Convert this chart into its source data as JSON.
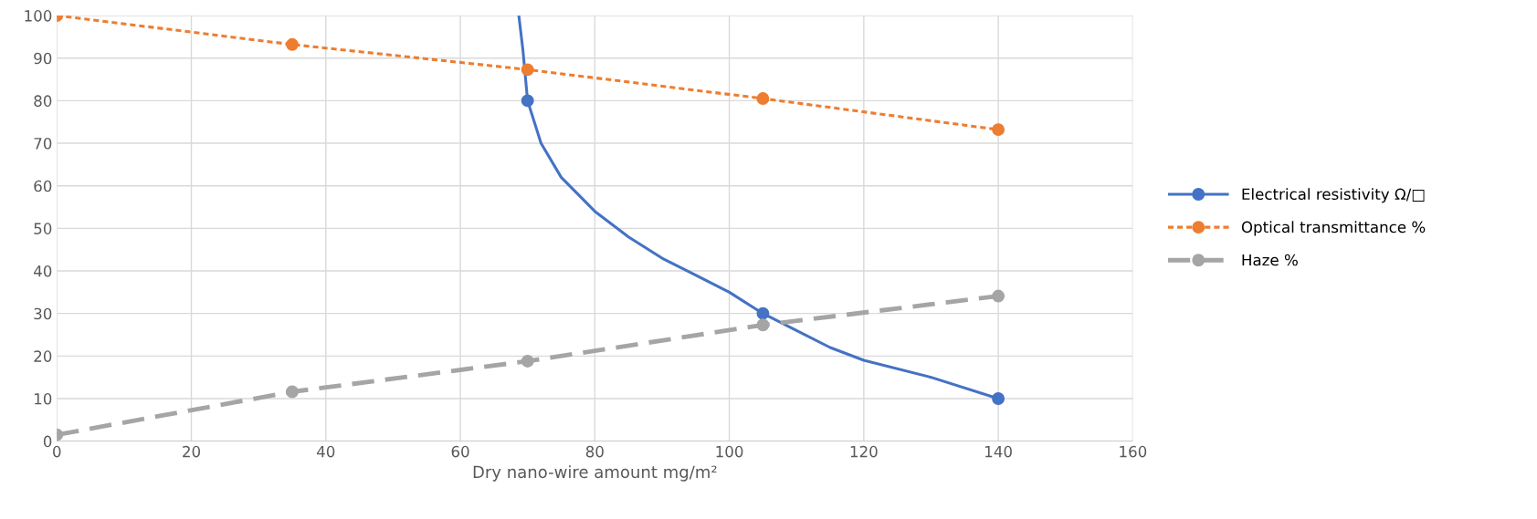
{
  "chart_data": {
    "type": "line",
    "xlabel": "Dry nano-wire amount mg/m²",
    "xlim": [
      0,
      160
    ],
    "xticks": [
      0,
      20,
      40,
      60,
      80,
      100,
      120,
      140,
      160
    ],
    "ylim": [
      0,
      100
    ],
    "yticks": [
      0,
      10,
      20,
      30,
      40,
      50,
      60,
      70,
      80,
      90,
      100
    ],
    "grid": true,
    "legend": "right",
    "series": [
      {
        "color": "#4472c4",
        "marker": "none",
        "line_style": "solid",
        "x": [
          68.7,
          69.3,
          70,
          72,
          75,
          80,
          85,
          90,
          95,
          100,
          105,
          110,
          115,
          120,
          130,
          140
        ],
        "values": [
          100,
          92,
          80,
          70,
          62,
          54,
          48,
          43,
          39,
          35,
          30,
          26,
          22,
          19,
          15,
          10
        ]
      },
      {
        "name": "Electrical resistivity Ω/□",
        "type": "scatter",
        "color": "#4472c4",
        "marker": "circle",
        "line_style": "solid",
        "x": [
          70,
          105,
          140
        ],
        "values": [
          80,
          30,
          10
        ]
      },
      {
        "name": "Optical transmittance %",
        "color": "#ed7d31",
        "marker": "circle",
        "line_style": "dotted",
        "x": [
          0,
          35,
          70,
          105,
          140
        ],
        "values": [
          100,
          93.2,
          87.3,
          80.5,
          73.2
        ]
      },
      {
        "name": "Haze %",
        "color": "#a5a5a5",
        "marker": "circle",
        "line_style": "dashed",
        "x": [
          0,
          35,
          70,
          105,
          140
        ],
        "values": [
          1.5,
          11.6,
          18.8,
          27.3,
          34.1
        ]
      }
    ]
  }
}
